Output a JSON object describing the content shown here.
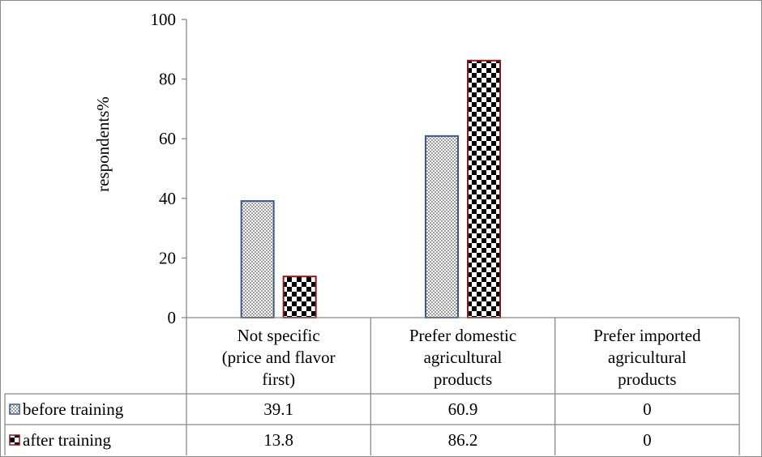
{
  "chart_data": {
    "type": "bar",
    "ylabel": "respondents%",
    "ylim": [
      0,
      100
    ],
    "yticks": [
      0,
      20,
      40,
      60,
      80,
      100
    ],
    "categories": [
      [
        "Not specific",
        "(price and flavor",
        "first)"
      ],
      [
        "Prefer domestic",
        "agricultural",
        "products"
      ],
      [
        "Prefer imported",
        "agricultural",
        "products"
      ]
    ],
    "series": [
      {
        "name": "before training",
        "values": [
          39.1,
          60.9,
          0
        ],
        "labels": [
          "39.1",
          "60.9",
          "0"
        ],
        "pattern": "dots",
        "border_color": "#3b5a8a"
      },
      {
        "name": "after training",
        "values": [
          13.8,
          86.2,
          0
        ],
        "labels": [
          "13.8",
          "86.2",
          "0"
        ],
        "pattern": "checker",
        "border_color": "#8b1a1a"
      }
    ],
    "legend": "data-table-left",
    "grid": false
  }
}
